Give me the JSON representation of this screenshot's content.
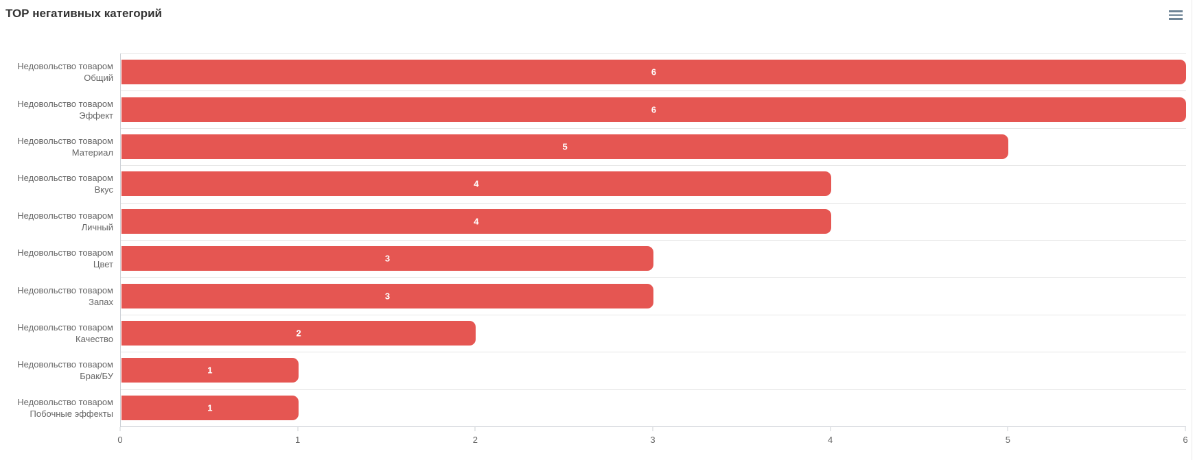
{
  "header": {
    "title": "ТОР негативных категорий"
  },
  "context_menu": {
    "icon": "hamburger-menu-icon"
  },
  "chart_data": {
    "type": "bar",
    "orientation": "horizontal",
    "title": "ТОР негативных категорий",
    "categories": [
      "Недовольство товаром Общий",
      "Недовольство товаром Эффект",
      "Недовольство товаром Материал",
      "Недовольство товаром Вкус",
      "Недовольство товаром Личный",
      "Недовольство товаром Цвет",
      "Недовольство товаром Запах",
      "Недовольство товаром Качество",
      "Недовольство товаром Брак/БУ",
      "Недовольство товаром Побочные эффекты"
    ],
    "category_lines": [
      [
        "Недовольство товаром",
        "Общий"
      ],
      [
        "Недовольство товаром",
        "Эффект"
      ],
      [
        "Недовольство товаром",
        "Материал"
      ],
      [
        "Недовольство товаром",
        "Вкус"
      ],
      [
        "Недовольство товаром",
        "Личный"
      ],
      [
        "Недовольство товаром",
        "Цвет"
      ],
      [
        "Недовольство товаром",
        "Запах"
      ],
      [
        "Недовольство товаром",
        "Качество"
      ],
      [
        "Недовольство товаром",
        "Брак/БУ"
      ],
      [
        "Недовольство товаром",
        "Побочные эффекты"
      ]
    ],
    "values": [
      6,
      6,
      5,
      4,
      4,
      3,
      3,
      2,
      1,
      1
    ],
    "data_labels": [
      "6",
      "6",
      "5",
      "4",
      "4",
      "3",
      "3",
      "2",
      "1",
      "1"
    ],
    "xlabel": "",
    "ylabel": "",
    "xlim": [
      0,
      6
    ],
    "xticks": [
      "0",
      "1",
      "2",
      "3",
      "4",
      "5",
      "6"
    ],
    "legend": "none",
    "grid": "horizontal category separators only",
    "colors": {
      "bar": "#e55652",
      "data_label": "#ffffff",
      "gridline": "#e6e6e6",
      "axis_line": "#ccd0d6",
      "axis_label": "#666666",
      "title": "#333333",
      "menu_icon": "#6e8496"
    }
  }
}
